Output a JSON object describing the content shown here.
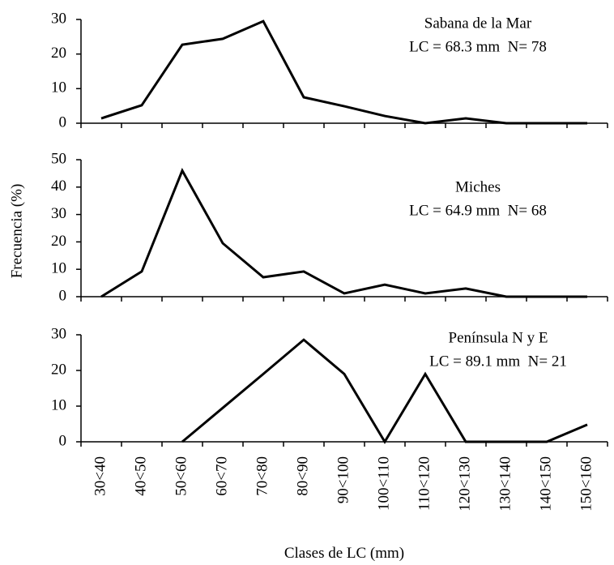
{
  "ylabel": "Frecuencia (%)",
  "xlabel": "Clases de LC (mm)",
  "chart_data": [
    {
      "type": "line",
      "title": "Sabana de la Mar",
      "subtitle": "LC = 68.3 mm  N= 78",
      "color": "#000000",
      "values": [
        1.4,
        5.2,
        22.7,
        24.4,
        29.5,
        7.5,
        4.9,
        2.1,
        0,
        1.4,
        0,
        0,
        0
      ],
      "ylim": [
        0,
        30
      ],
      "yticks": [
        0,
        10,
        20,
        30
      ]
    },
    {
      "type": "line",
      "title": "Miches",
      "subtitle": "LC = 64.9 mm  N= 68",
      "color": "#000000",
      "values": [
        0,
        9.2,
        46,
        19.5,
        7.1,
        9.2,
        1.2,
        4.4,
        1.2,
        3,
        0,
        0,
        0
      ],
      "ylim": [
        0,
        50
      ],
      "yticks": [
        0,
        10,
        20,
        30,
        40,
        50
      ]
    },
    {
      "type": "line",
      "title": "Península N y E",
      "subtitle": "LC = 89.1 mm  N= 21",
      "color": "#000000",
      "categories": [
        "30<40",
        "40<50",
        "50<60",
        "60<70",
        "70<80",
        "80<90",
        "90<100",
        "100<110",
        "110<120",
        "120<130",
        "130<140",
        "140<150",
        "150<160"
      ],
      "values": [
        null,
        null,
        0,
        9.5,
        19,
        28.6,
        19,
        0,
        19,
        0,
        0,
        0,
        4.8
      ],
      "ylim": [
        0,
        30
      ],
      "yticks": [
        0,
        10,
        20,
        30
      ]
    }
  ]
}
